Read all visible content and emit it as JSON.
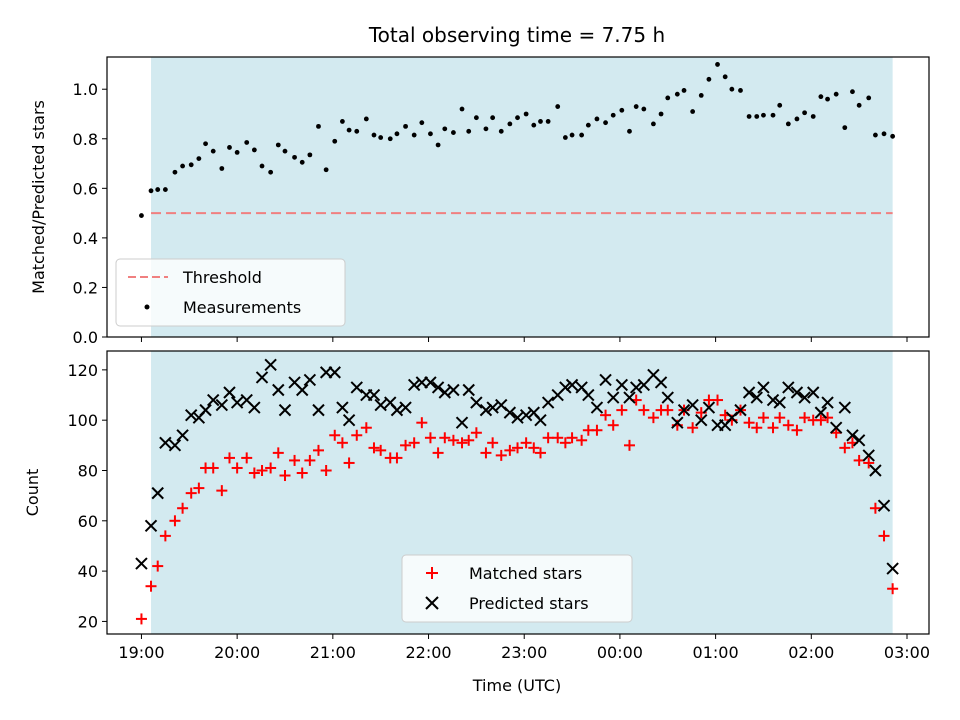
{
  "title": "Total observing time = 7.75 h",
  "xlabel": "Time (UTC)",
  "x_tick_labels": [
    "19:00",
    "20:00",
    "21:00",
    "22:00",
    "23:00",
    "00:00",
    "01:00",
    "02:00",
    "03:00"
  ],
  "colors": {
    "shade": "#d3eaf0",
    "threshold": "#f08080",
    "measurements": "#000000",
    "matched": "#ff0000",
    "predicted": "#000000"
  },
  "chart_data": [
    {
      "type": "scatter",
      "panel": "top",
      "ylabel": "Matched/Predicted stars",
      "xlim": [
        18.64,
        27.23
      ],
      "ylim": [
        0.0,
        1.13
      ],
      "y_ticks": [
        0.0,
        0.2,
        0.4,
        0.6,
        0.8,
        1.0
      ],
      "x_ticks": [
        19,
        20,
        21,
        22,
        23,
        24,
        25,
        26,
        27
      ],
      "shaded_span": [
        19.1,
        26.85
      ],
      "legend_position": "lower-left",
      "threshold": {
        "name": "Threshold",
        "value": 0.5,
        "x_range": [
          19.1,
          26.85
        ]
      },
      "series": [
        {
          "name": "Measurements",
          "x": [
            19.0,
            19.1,
            19.17,
            19.25,
            19.35,
            19.43,
            19.52,
            19.6,
            19.67,
            19.75,
            19.84,
            19.92,
            20.0,
            20.1,
            20.18,
            20.26,
            20.35,
            20.43,
            20.5,
            20.6,
            20.68,
            20.76,
            20.85,
            20.93,
            21.02,
            21.1,
            21.17,
            21.25,
            21.35,
            21.43,
            21.5,
            21.6,
            21.67,
            21.76,
            21.85,
            21.93,
            22.02,
            22.1,
            22.17,
            22.26,
            22.35,
            22.42,
            22.5,
            22.6,
            22.67,
            22.76,
            22.85,
            22.93,
            23.02,
            23.1,
            23.17,
            23.25,
            23.35,
            23.43,
            23.5,
            23.6,
            23.67,
            23.76,
            23.85,
            23.93,
            24.02,
            24.1,
            24.17,
            24.25,
            24.35,
            24.43,
            24.5,
            24.6,
            24.67,
            24.76,
            24.85,
            24.93,
            25.02,
            25.1,
            25.17,
            25.26,
            25.35,
            25.43,
            25.5,
            25.6,
            25.67,
            25.76,
            25.85,
            25.93,
            26.02,
            26.1,
            26.17,
            26.26,
            26.35,
            26.43,
            26.5,
            26.6,
            26.67,
            26.76,
            26.85
          ],
          "y": [
            0.49,
            0.59,
            0.595,
            0.595,
            0.665,
            0.69,
            0.695,
            0.72,
            0.78,
            0.75,
            0.68,
            0.765,
            0.745,
            0.785,
            0.755,
            0.69,
            0.665,
            0.775,
            0.75,
            0.725,
            0.705,
            0.735,
            0.85,
            0.675,
            0.79,
            0.87,
            0.835,
            0.83,
            0.88,
            0.815,
            0.805,
            0.8,
            0.82,
            0.85,
            0.815,
            0.865,
            0.82,
            0.775,
            0.84,
            0.825,
            0.92,
            0.83,
            0.885,
            0.84,
            0.885,
            0.83,
            0.86,
            0.885,
            0.9,
            0.855,
            0.87,
            0.87,
            0.93,
            0.805,
            0.815,
            0.815,
            0.855,
            0.88,
            0.865,
            0.895,
            0.915,
            0.83,
            0.93,
            0.92,
            0.86,
            0.9,
            0.965,
            0.98,
            0.995,
            0.91,
            0.975,
            1.04,
            1.1,
            1.05,
            1.0,
            0.995,
            0.89,
            0.89,
            0.895,
            0.895,
            0.935,
            0.86,
            0.88,
            0.905,
            0.89,
            0.97,
            0.96,
            0.98,
            0.845,
            0.99,
            0.935,
            0.965,
            0.815,
            0.82,
            0.81
          ]
        }
      ]
    },
    {
      "type": "scatter",
      "panel": "bottom",
      "ylabel": "Count",
      "xlim": [
        18.64,
        27.23
      ],
      "ylim": [
        15.0,
        127.5
      ],
      "y_ticks": [
        20,
        40,
        60,
        80,
        100,
        120
      ],
      "x_ticks": [
        19,
        20,
        21,
        22,
        23,
        24,
        25,
        26,
        27
      ],
      "shaded_span": [
        19.1,
        26.85
      ],
      "legend_position": "lower-center",
      "series": [
        {
          "name": "Matched stars",
          "marker": "plus",
          "x": [
            19.0,
            19.1,
            19.17,
            19.25,
            19.35,
            19.43,
            19.52,
            19.6,
            19.67,
            19.75,
            19.84,
            19.92,
            20.0,
            20.1,
            20.18,
            20.26,
            20.35,
            20.43,
            20.5,
            20.6,
            20.68,
            20.76,
            20.85,
            20.93,
            21.02,
            21.1,
            21.17,
            21.25,
            21.35,
            21.43,
            21.5,
            21.6,
            21.67,
            21.76,
            21.85,
            21.93,
            22.02,
            22.1,
            22.17,
            22.26,
            22.35,
            22.42,
            22.5,
            22.6,
            22.67,
            22.76,
            22.85,
            22.93,
            23.02,
            23.1,
            23.17,
            23.25,
            23.35,
            23.43,
            23.5,
            23.6,
            23.67,
            23.76,
            23.85,
            23.93,
            24.02,
            24.1,
            24.17,
            24.25,
            24.35,
            24.43,
            24.5,
            24.6,
            24.67,
            24.76,
            24.85,
            24.93,
            25.02,
            25.1,
            25.17,
            25.26,
            25.35,
            25.43,
            25.5,
            25.6,
            25.67,
            25.76,
            25.85,
            25.93,
            26.02,
            26.1,
            26.17,
            26.26,
            26.35,
            26.43,
            26.5,
            26.6,
            26.67,
            26.76,
            26.85
          ],
          "y": [
            21,
            34,
            42,
            54,
            60,
            65,
            71,
            73,
            81,
            81,
            72,
            85,
            81,
            85,
            79,
            80,
            81,
            87,
            78,
            84,
            79,
            84,
            88,
            80,
            94,
            91,
            83,
            94,
            97,
            89,
            88,
            85,
            85,
            90,
            91,
            99,
            93,
            87,
            93,
            92,
            91,
            92,
            95,
            87,
            91,
            86,
            88,
            89,
            91,
            89,
            87,
            93,
            93,
            91,
            93,
            92,
            96,
            96,
            102,
            98,
            104,
            90,
            108,
            104,
            101,
            104,
            104,
            98,
            104,
            97,
            103,
            108,
            108,
            102,
            100,
            104,
            99,
            97,
            101,
            97,
            101,
            98,
            96,
            101,
            100,
            100,
            101,
            95,
            89,
            91,
            84,
            83,
            65,
            54,
            33
          ]
        },
        {
          "name": "Predicted stars",
          "marker": "x",
          "x": [
            19.0,
            19.1,
            19.17,
            19.25,
            19.35,
            19.43,
            19.52,
            19.6,
            19.67,
            19.75,
            19.84,
            19.92,
            20.0,
            20.1,
            20.18,
            20.26,
            20.35,
            20.43,
            20.5,
            20.6,
            20.68,
            20.76,
            20.85,
            20.93,
            21.02,
            21.1,
            21.17,
            21.25,
            21.35,
            21.43,
            21.5,
            21.6,
            21.67,
            21.76,
            21.85,
            21.93,
            22.02,
            22.1,
            22.17,
            22.26,
            22.35,
            22.42,
            22.5,
            22.6,
            22.67,
            22.76,
            22.85,
            22.93,
            23.02,
            23.1,
            23.17,
            23.25,
            23.35,
            23.43,
            23.5,
            23.6,
            23.67,
            23.76,
            23.85,
            23.93,
            24.02,
            24.1,
            24.17,
            24.25,
            24.35,
            24.43,
            24.5,
            24.6,
            24.67,
            24.76,
            24.85,
            24.93,
            25.02,
            25.1,
            25.17,
            25.26,
            25.35,
            25.43,
            25.5,
            25.6,
            25.67,
            25.76,
            25.85,
            25.93,
            26.02,
            26.1,
            26.17,
            26.26,
            26.35,
            26.43,
            26.5,
            26.6,
            26.67,
            26.76,
            26.85
          ],
          "y": [
            43,
            58,
            71,
            91,
            90,
            94,
            102,
            101,
            104,
            108,
            106,
            111,
            107,
            108,
            105,
            117,
            122,
            112,
            104,
            115,
            112,
            116,
            104,
            119,
            119,
            105,
            100,
            113,
            110,
            110,
            106,
            107,
            104,
            105,
            114,
            115,
            115,
            113,
            111,
            112,
            99,
            112,
            107,
            104,
            105,
            106,
            103,
            101,
            102,
            103,
            100,
            107,
            110,
            113,
            114,
            113,
            110,
            105,
            116,
            109,
            114,
            109,
            113,
            114,
            118,
            115,
            109,
            99,
            104,
            106,
            100,
            105,
            98,
            98,
            101,
            104,
            111,
            109,
            113,
            108,
            107,
            113,
            111,
            109,
            111,
            103,
            107,
            97,
            105,
            94,
            92,
            86,
            80,
            66,
            41
          ]
        }
      ]
    }
  ],
  "legends": {
    "top": {
      "threshold": "Threshold",
      "measurements": "Measurements"
    },
    "bottom": {
      "matched": "Matched stars",
      "predicted": "Predicted stars"
    }
  }
}
